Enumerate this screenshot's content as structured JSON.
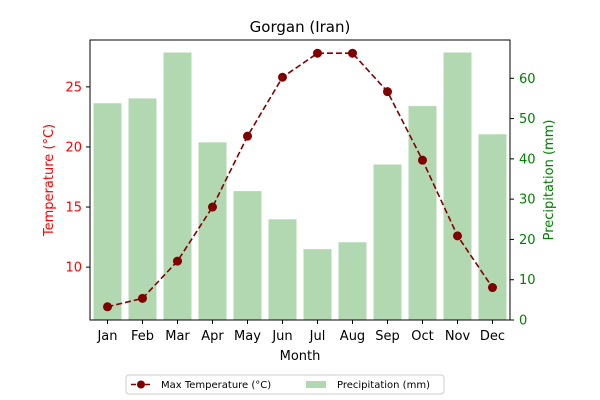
{
  "chart_data": {
    "type": "bar+line",
    "title": "Gorgan (Iran)",
    "xlabel": "Month",
    "categories": [
      "Jan",
      "Feb",
      "Mar",
      "Apr",
      "May",
      "Jun",
      "Jul",
      "Aug",
      "Sep",
      "Oct",
      "Nov",
      "Dec"
    ],
    "y_left": {
      "label": "Temperature (°C)",
      "range": [
        5.6,
        28.9
      ],
      "ticks": [
        10,
        15,
        20,
        25
      ],
      "color": "#ff0000"
    },
    "y_right": {
      "label": "Precipitation (mm)",
      "range": [
        0,
        69.5
      ],
      "ticks": [
        0,
        10,
        20,
        30,
        40,
        50,
        60
      ],
      "color": "#008000"
    },
    "series": [
      {
        "name": "Max Temperature (°C)",
        "type": "line",
        "axis": "left",
        "color": "#800000",
        "style": "dashed",
        "marker": "circle",
        "values": [
          6.7,
          7.4,
          10.5,
          15.0,
          20.9,
          25.8,
          27.8,
          27.8,
          24.6,
          18.9,
          12.6,
          8.3
        ]
      },
      {
        "name": "Precipitation (mm)",
        "type": "bar",
        "axis": "right",
        "color": "#b2d8b2",
        "values": [
          53.8,
          55.0,
          66.4,
          44.1,
          32.0,
          25.0,
          17.6,
          19.3,
          38.6,
          53.1,
          66.4,
          46.1
        ]
      }
    ],
    "legend": {
      "placement": "bottom-center",
      "columns": 2
    },
    "grid": false
  }
}
